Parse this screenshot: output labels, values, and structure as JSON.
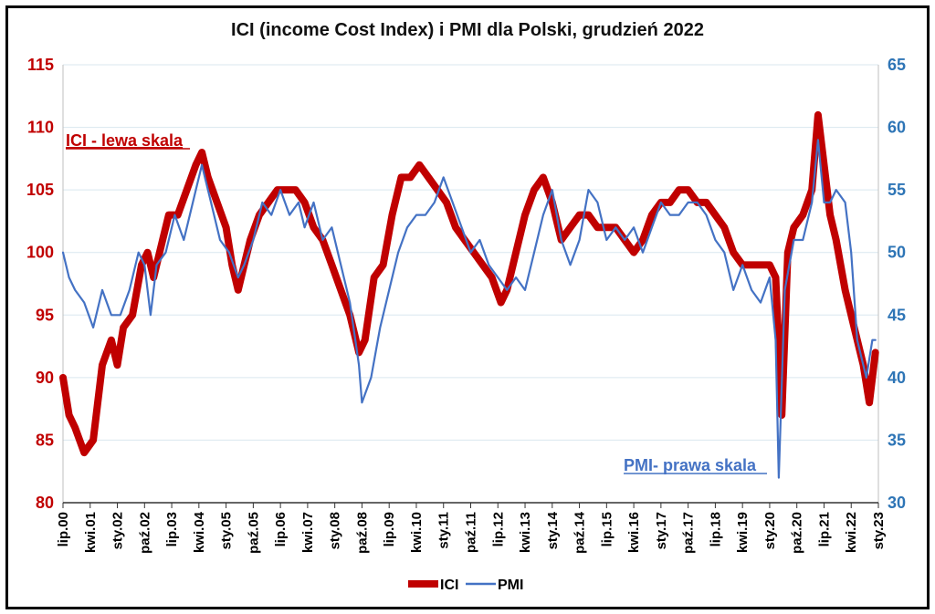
{
  "chart_data": {
    "type": "line",
    "title": "ICI (income Cost Index) i PMI dla Polski, grudzień 2022",
    "x_ticks": [
      "lip.00",
      "kwi.01",
      "sty.02",
      "paź.02",
      "lip.03",
      "kwi.04",
      "sty.05",
      "paź.05",
      "lip.06",
      "kwi.07",
      "sty.08",
      "paź.08",
      "lip.09",
      "kwi.10",
      "sty.11",
      "paź.11",
      "lip.12",
      "kwi.13",
      "sty.14",
      "paź.14",
      "lip.15",
      "kwi.16",
      "sty.17",
      "paź.17",
      "lip.18",
      "kwi.19",
      "sty.20",
      "paź.20",
      "lip.21",
      "kwi.22",
      "sty.23"
    ],
    "y_left": {
      "range": [
        80,
        115
      ],
      "ticks": [
        80,
        85,
        90,
        95,
        100,
        105,
        110,
        115
      ],
      "color": "#c00000"
    },
    "y_right": {
      "range": [
        30,
        65
      ],
      "ticks": [
        30,
        35,
        40,
        45,
        50,
        55,
        60,
        65
      ],
      "color": "#2e75b6"
    },
    "annotations": [
      {
        "text": "ICI - lewa skala",
        "color": "#c00000"
      },
      {
        "text": "PMI- prawa skala",
        "color": "#4472c4"
      }
    ],
    "legend": {
      "position": "bottom",
      "entries": [
        "ICI",
        "PMI"
      ]
    },
    "grid": true,
    "series": [
      {
        "name": "ICI",
        "axis": "left",
        "color": "#c00000",
        "points": [
          [
            "2000-07",
            90
          ],
          [
            "2000-09",
            87
          ],
          [
            "2000-11",
            86
          ],
          [
            "2001-02",
            84
          ],
          [
            "2001-05",
            85
          ],
          [
            "2001-08",
            91
          ],
          [
            "2001-11",
            93
          ],
          [
            "2002-01",
            91
          ],
          [
            "2002-03",
            94
          ],
          [
            "2002-06",
            95
          ],
          [
            "2002-09",
            99
          ],
          [
            "2002-11",
            100
          ],
          [
            "2003-01",
            98
          ],
          [
            "2003-04",
            101
          ],
          [
            "2003-06",
            103
          ],
          [
            "2003-09",
            103
          ],
          [
            "2003-12",
            105
          ],
          [
            "2004-03",
            107
          ],
          [
            "2004-05",
            108
          ],
          [
            "2004-07",
            106
          ],
          [
            "2004-10",
            104
          ],
          [
            "2005-01",
            102
          ],
          [
            "2005-03",
            99
          ],
          [
            "2005-05",
            97
          ],
          [
            "2005-07",
            99
          ],
          [
            "2005-09",
            101
          ],
          [
            "2005-12",
            103
          ],
          [
            "2006-03",
            104
          ],
          [
            "2006-06",
            105
          ],
          [
            "2006-09",
            105
          ],
          [
            "2006-12",
            105
          ],
          [
            "2007-03",
            104
          ],
          [
            "2007-06",
            102
          ],
          [
            "2007-09",
            101
          ],
          [
            "2007-12",
            99
          ],
          [
            "2008-03",
            97
          ],
          [
            "2008-06",
            95
          ],
          [
            "2008-09",
            92
          ],
          [
            "2008-11",
            93
          ],
          [
            "2009-02",
            98
          ],
          [
            "2009-05",
            99
          ],
          [
            "2009-08",
            103
          ],
          [
            "2009-11",
            106
          ],
          [
            "2010-02",
            106
          ],
          [
            "2010-05",
            107
          ],
          [
            "2010-08",
            106
          ],
          [
            "2010-11",
            105
          ],
          [
            "2011-02",
            104
          ],
          [
            "2011-05",
            102
          ],
          [
            "2011-08",
            101
          ],
          [
            "2011-11",
            100
          ],
          [
            "2012-02",
            99
          ],
          [
            "2012-05",
            98
          ],
          [
            "2012-08",
            96
          ],
          [
            "2012-10",
            97
          ],
          [
            "2013-01",
            100
          ],
          [
            "2013-04",
            103
          ],
          [
            "2013-07",
            105
          ],
          [
            "2013-10",
            106
          ],
          [
            "2014-01",
            104
          ],
          [
            "2014-04",
            101
          ],
          [
            "2014-07",
            102
          ],
          [
            "2014-10",
            103
          ],
          [
            "2015-01",
            103
          ],
          [
            "2015-04",
            102
          ],
          [
            "2015-07",
            102
          ],
          [
            "2015-10",
            102
          ],
          [
            "2016-01",
            101
          ],
          [
            "2016-04",
            100
          ],
          [
            "2016-07",
            101
          ],
          [
            "2016-10",
            103
          ],
          [
            "2017-01",
            104
          ],
          [
            "2017-04",
            104
          ],
          [
            "2017-07",
            105
          ],
          [
            "2017-10",
            105
          ],
          [
            "2018-01",
            104
          ],
          [
            "2018-04",
            104
          ],
          [
            "2018-07",
            103
          ],
          [
            "2018-10",
            102
          ],
          [
            "2019-01",
            100
          ],
          [
            "2019-04",
            99
          ],
          [
            "2019-07",
            99
          ],
          [
            "2019-10",
            99
          ],
          [
            "2020-01",
            99
          ],
          [
            "2020-03",
            98
          ],
          [
            "2020-05",
            87
          ],
          [
            "2020-07",
            100
          ],
          [
            "2020-09",
            102
          ],
          [
            "2020-12",
            103
          ],
          [
            "2021-03",
            105
          ],
          [
            "2021-05",
            111
          ],
          [
            "2021-07",
            107
          ],
          [
            "2021-09",
            103
          ],
          [
            "2021-11",
            101
          ],
          [
            "2022-02",
            97
          ],
          [
            "2022-05",
            94
          ],
          [
            "2022-08",
            91
          ],
          [
            "2022-10",
            88
          ],
          [
            "2022-12",
            92
          ]
        ]
      },
      {
        "name": "PMI",
        "axis": "right",
        "color": "#4472c4",
        "points": [
          [
            "2000-07",
            50
          ],
          [
            "2000-09",
            48
          ],
          [
            "2000-11",
            47
          ],
          [
            "2001-02",
            46
          ],
          [
            "2001-05",
            44
          ],
          [
            "2001-08",
            47
          ],
          [
            "2001-11",
            45
          ],
          [
            "2002-02",
            45
          ],
          [
            "2002-05",
            47
          ],
          [
            "2002-08",
            50
          ],
          [
            "2002-10",
            49
          ],
          [
            "2002-12",
            45
          ],
          [
            "2003-02",
            49
          ],
          [
            "2003-05",
            50
          ],
          [
            "2003-08",
            53
          ],
          [
            "2003-11",
            51
          ],
          [
            "2004-01",
            53
          ],
          [
            "2004-03",
            55
          ],
          [
            "2004-05",
            57
          ],
          [
            "2004-08",
            54
          ],
          [
            "2004-11",
            51
          ],
          [
            "2005-02",
            50
          ],
          [
            "2005-05",
            48
          ],
          [
            "2005-07",
            49
          ],
          [
            "2005-10",
            51
          ],
          [
            "2006-01",
            54
          ],
          [
            "2006-04",
            53
          ],
          [
            "2006-07",
            55
          ],
          [
            "2006-10",
            53
          ],
          [
            "2007-01",
            54
          ],
          [
            "2007-03",
            52
          ],
          [
            "2007-06",
            54
          ],
          [
            "2007-09",
            51
          ],
          [
            "2007-12",
            52
          ],
          [
            "2008-03",
            49
          ],
          [
            "2008-06",
            46
          ],
          [
            "2008-09",
            41
          ],
          [
            "2008-10",
            38
          ],
          [
            "2009-01",
            40
          ],
          [
            "2009-04",
            44
          ],
          [
            "2009-07",
            47
          ],
          [
            "2009-10",
            50
          ],
          [
            "2010-01",
            52
          ],
          [
            "2010-04",
            53
          ],
          [
            "2010-07",
            53
          ],
          [
            "2010-10",
            54
          ],
          [
            "2011-01",
            56
          ],
          [
            "2011-04",
            54
          ],
          [
            "2011-07",
            52
          ],
          [
            "2011-10",
            50
          ],
          [
            "2012-01",
            51
          ],
          [
            "2012-04",
            49
          ],
          [
            "2012-07",
            48
          ],
          [
            "2012-10",
            47
          ],
          [
            "2013-01",
            48
          ],
          [
            "2013-04",
            47
          ],
          [
            "2013-07",
            50
          ],
          [
            "2013-10",
            53
          ],
          [
            "2014-01",
            55
          ],
          [
            "2014-04",
            51
          ],
          [
            "2014-07",
            49
          ],
          [
            "2014-10",
            51
          ],
          [
            "2015-01",
            55
          ],
          [
            "2015-04",
            54
          ],
          [
            "2015-07",
            51
          ],
          [
            "2015-10",
            52
          ],
          [
            "2016-01",
            51
          ],
          [
            "2016-04",
            52
          ],
          [
            "2016-07",
            50
          ],
          [
            "2016-10",
            52
          ],
          [
            "2017-01",
            54
          ],
          [
            "2017-04",
            53
          ],
          [
            "2017-07",
            53
          ],
          [
            "2017-10",
            54
          ],
          [
            "2018-01",
            54
          ],
          [
            "2018-04",
            53
          ],
          [
            "2018-07",
            51
          ],
          [
            "2018-10",
            50
          ],
          [
            "2019-01",
            47
          ],
          [
            "2019-04",
            49
          ],
          [
            "2019-07",
            47
          ],
          [
            "2019-10",
            46
          ],
          [
            "2020-01",
            48
          ],
          [
            "2020-03",
            43
          ],
          [
            "2020-04",
            32
          ],
          [
            "2020-06",
            47
          ],
          [
            "2020-09",
            51
          ],
          [
            "2020-12",
            51
          ],
          [
            "2021-03",
            54
          ],
          [
            "2021-05",
            59
          ],
          [
            "2021-07",
            54
          ],
          [
            "2021-09",
            54
          ],
          [
            "2021-11",
            55
          ],
          [
            "2022-02",
            54
          ],
          [
            "2022-04",
            50
          ],
          [
            "2022-06",
            43
          ],
          [
            "2022-09",
            40
          ],
          [
            "2022-11",
            43
          ],
          [
            "2022-12",
            43
          ]
        ]
      }
    ]
  }
}
